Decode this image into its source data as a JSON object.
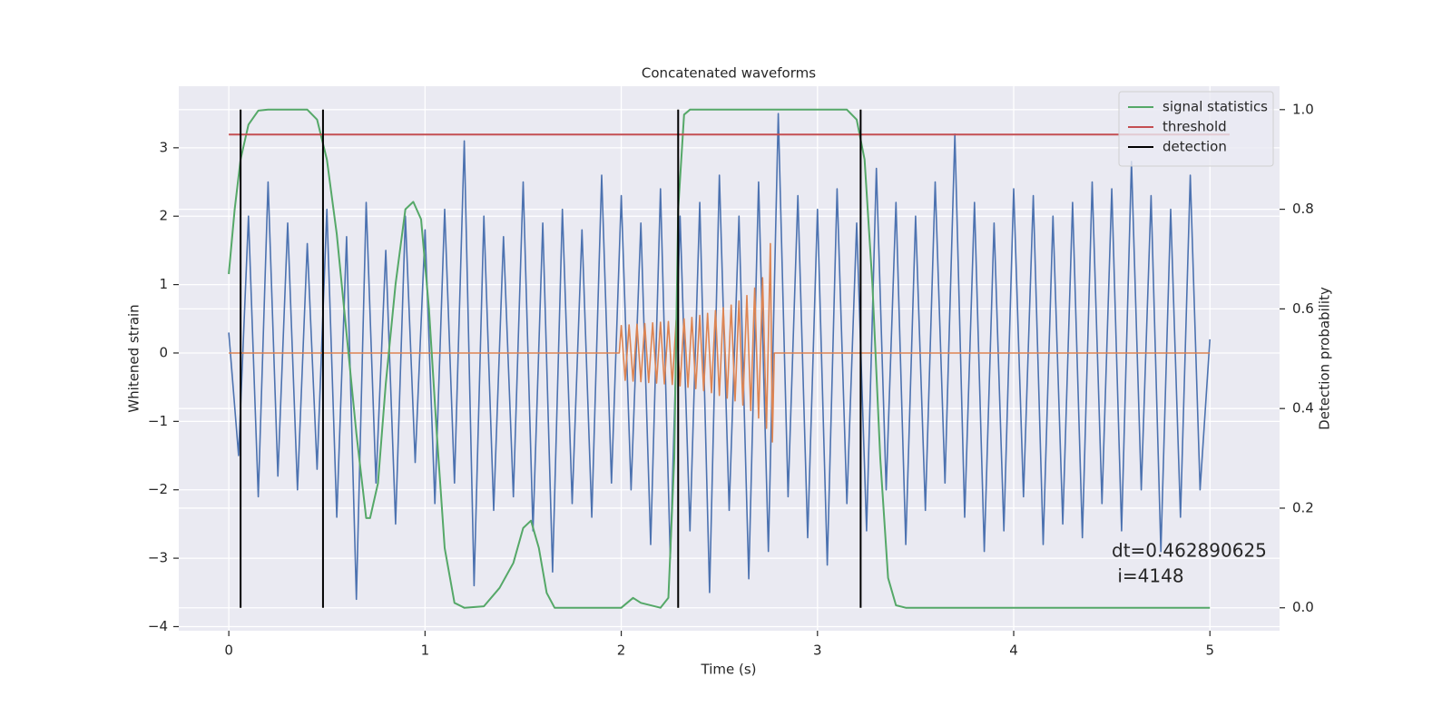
{
  "chart_data": {
    "type": "line",
    "title": "Concatenated waveforms",
    "x_label": "Time (s)",
    "y_label": "Whitened strain",
    "y2_label": "Detection probability",
    "annotation": [
      "dt=0.462890625",
      " i=4148"
    ],
    "xlim": [
      -0.255,
      5.355
    ],
    "ylim": [
      -4.06,
      3.9
    ],
    "y2lim": [
      -0.046,
      1.047
    ],
    "xticks": [
      0,
      1,
      2,
      3,
      4,
      5
    ],
    "yticks": [
      {
        "value": -4,
        "label": "−4"
      },
      {
        "value": -3,
        "label": "−3"
      },
      {
        "value": -2,
        "label": "−2"
      },
      {
        "value": -1,
        "label": "−1"
      },
      0,
      1,
      2,
      3
    ],
    "y2ticks": [
      {
        "value": 0,
        "label": "0.0"
      },
      {
        "value": 0.2,
        "label": "0.2"
      },
      {
        "value": 0.4,
        "label": "0.4"
      },
      {
        "value": 0.6,
        "label": "0.6"
      },
      {
        "value": 0.8,
        "label": "0.8"
      },
      {
        "value": 1,
        "label": "1.0"
      }
    ],
    "grid": true,
    "legend": "upper right",
    "series": [
      {
        "color": "#4c72b0",
        "axis": "y",
        "x": [
          0,
          0.05,
          0.1,
          0.15,
          0.2,
          0.25,
          0.3,
          0.35,
          0.4,
          0.45,
          0.5,
          0.55,
          0.6,
          0.65,
          0.7,
          0.75,
          0.8,
          0.85,
          0.9,
          0.95,
          1,
          1.05,
          1.1,
          1.15,
          1.2,
          1.25,
          1.3,
          1.35,
          1.4,
          1.45,
          1.5,
          1.55,
          1.6,
          1.65,
          1.7,
          1.75,
          1.8,
          1.85,
          1.9,
          1.95,
          2,
          2.05,
          2.1,
          2.15,
          2.2,
          2.25,
          2.3,
          2.35,
          2.4,
          2.45,
          2.5,
          2.55,
          2.6,
          2.65,
          2.7,
          2.75,
          2.8,
          2.85,
          2.9,
          2.95,
          3,
          3.05,
          3.1,
          3.15,
          3.2,
          3.25,
          3.3,
          3.35,
          3.4,
          3.45,
          3.5,
          3.55,
          3.6,
          3.65,
          3.7,
          3.75,
          3.8,
          3.85,
          3.9,
          3.95,
          4,
          4.05,
          4.1,
          4.15,
          4.2,
          4.25,
          4.3,
          4.35,
          4.4,
          4.45,
          4.5,
          4.55,
          4.6,
          4.65,
          4.7,
          4.75,
          4.8,
          4.85,
          4.9,
          4.95,
          5
        ],
        "values": [
          0.3,
          -1.5,
          2.0,
          -2.1,
          2.5,
          -1.8,
          1.9,
          -2.0,
          1.6,
          -1.7,
          2.1,
          -2.4,
          1.7,
          -3.6,
          2.2,
          -1.9,
          1.5,
          -2.5,
          2.0,
          -1.6,
          1.8,
          -2.2,
          2.1,
          -1.9,
          3.1,
          -3.4,
          2.0,
          -2.3,
          1.7,
          -2.1,
          2.5,
          -2.6,
          1.9,
          -3.2,
          2.1,
          -2.2,
          1.8,
          -2.4,
          2.6,
          -1.9,
          2.3,
          -2.0,
          1.9,
          -2.8,
          2.4,
          -3.0,
          2.0,
          -2.6,
          2.2,
          -3.5,
          2.6,
          -2.3,
          2.0,
          -3.3,
          2.5,
          -2.9,
          3.5,
          -2.1,
          2.3,
          -2.7,
          2.1,
          -3.1,
          2.4,
          -2.2,
          1.9,
          -2.6,
          2.7,
          -2.0,
          2.2,
          -2.8,
          2.0,
          -2.3,
          2.5,
          -1.9,
          3.2,
          -2.4,
          2.2,
          -2.9,
          1.9,
          -2.6,
          2.4,
          -2.1,
          2.3,
          -2.8,
          2.0,
          -2.5,
          2.2,
          -2.7,
          2.5,
          -2.2,
          2.4,
          -2.6,
          2.8,
          -2.0,
          2.3,
          -2.9,
          2.1,
          -2.4,
          2.6,
          -2.0,
          0.2
        ]
      },
      {
        "color": "#dd8452",
        "axis": "y",
        "x": [
          0,
          1.99,
          2.0,
          2.02,
          2.04,
          2.06,
          2.08,
          2.1,
          2.12,
          2.14,
          2.16,
          2.18,
          2.2,
          2.22,
          2.24,
          2.26,
          2.28,
          2.3,
          2.32,
          2.34,
          2.36,
          2.38,
          2.4,
          2.42,
          2.44,
          2.46,
          2.48,
          2.5,
          2.52,
          2.54,
          2.56,
          2.58,
          2.6,
          2.62,
          2.64,
          2.66,
          2.68,
          2.7,
          2.72,
          2.74,
          2.76,
          2.77,
          2.78,
          5
        ],
        "values": [
          0,
          0,
          0.4,
          -0.4,
          0.41,
          -0.41,
          0.42,
          -0.42,
          0.43,
          -0.43,
          0.44,
          -0.44,
          0.45,
          -0.45,
          0.46,
          -0.46,
          0.48,
          -0.48,
          0.5,
          -0.5,
          0.52,
          -0.52,
          0.55,
          -0.55,
          0.58,
          -0.58,
          0.62,
          -0.62,
          0.66,
          -0.66,
          0.7,
          -0.7,
          0.76,
          -0.76,
          0.84,
          -0.84,
          0.95,
          -0.95,
          1.1,
          -1.1,
          1.6,
          -1.3,
          0,
          0
        ]
      },
      {
        "name": "signal statistics",
        "color": "#55a868",
        "axis": "y2",
        "x": [
          0,
          0.03,
          0.06,
          0.1,
          0.15,
          0.2,
          0.4,
          0.45,
          0.5,
          0.55,
          0.6,
          0.65,
          0.7,
          0.72,
          0.76,
          0.8,
          0.85,
          0.9,
          0.94,
          0.98,
          1.02,
          1.06,
          1.1,
          1.15,
          1.2,
          1.3,
          1.38,
          1.45,
          1.5,
          1.54,
          1.58,
          1.62,
          1.66,
          2.0,
          2.06,
          2.1,
          2.2,
          2.24,
          2.27,
          2.29,
          2.32,
          2.35,
          3.15,
          3.2,
          3.24,
          3.28,
          3.32,
          3.36,
          3.4,
          3.45,
          5.0
        ],
        "values": [
          0.67,
          0.8,
          0.9,
          0.97,
          0.998,
          1.0,
          1.0,
          0.98,
          0.9,
          0.75,
          0.55,
          0.35,
          0.18,
          0.18,
          0.25,
          0.45,
          0.65,
          0.8,
          0.815,
          0.78,
          0.6,
          0.35,
          0.12,
          0.01,
          0.0,
          0.003,
          0.04,
          0.09,
          0.16,
          0.175,
          0.12,
          0.03,
          0.0,
          0.0,
          0.02,
          0.01,
          0.0,
          0.02,
          0.3,
          0.8,
          0.99,
          1.0,
          1.0,
          0.98,
          0.9,
          0.65,
          0.3,
          0.06,
          0.005,
          0.0,
          0.0
        ]
      },
      {
        "name": "threshold",
        "color": "#c44e52",
        "axis": "y2",
        "x": [
          0,
          5.1
        ],
        "values": [
          0.95,
          0.95
        ]
      },
      {
        "name": "detection",
        "color": "#000000",
        "axis": "y2",
        "vlines": [
          0.06,
          0.48,
          2.29,
          3.22
        ],
        "span": [
          0,
          1
        ]
      }
    ]
  }
}
